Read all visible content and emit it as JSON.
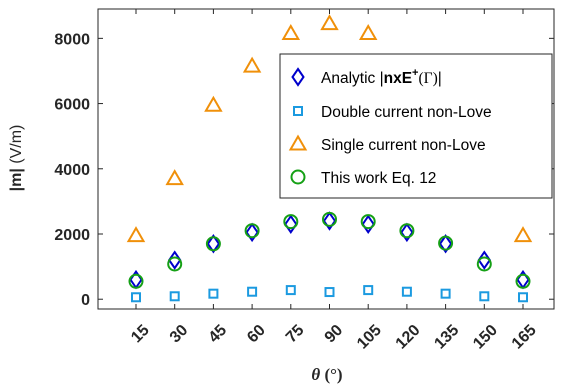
{
  "chart_data": {
    "type": "scatter",
    "xlabel_symbol": "θ",
    "xlabel_unit": " (°)",
    "ylabel_bold": "|m|",
    "ylabel_unit": " (V/m)",
    "x": [
      15,
      30,
      45,
      60,
      75,
      90,
      105,
      120,
      135,
      150,
      165
    ],
    "x_tick_labels": [
      "15",
      "30",
      "45",
      "60",
      "75",
      "90",
      "105",
      "120",
      "135",
      "150",
      "165"
    ],
    "y_ticks": [
      0,
      2000,
      4000,
      6000,
      8000
    ],
    "y_tick_labels": [
      "0",
      "2000",
      "4000",
      "6000",
      "8000"
    ],
    "ylim": [
      -300,
      8900
    ],
    "grid": false,
    "legend_position": "top-right",
    "series": [
      {
        "name": "Analytic |nxE+(Γ)|",
        "name_prefix": "Analytic |",
        "name_bold": "nxE",
        "name_sup": "+",
        "name_gamma": "(Γ)",
        "name_suffix": "|",
        "marker": "diamond",
        "color": "#0000CC",
        "values": [
          600,
          1200,
          1700,
          2050,
          2300,
          2400,
          2300,
          2050,
          1700,
          1200,
          600
        ]
      },
      {
        "name": "Double current non-Love",
        "marker": "square",
        "color": "#1B9AE0",
        "values": [
          60,
          90,
          170,
          230,
          280,
          220,
          280,
          230,
          170,
          90,
          60
        ]
      },
      {
        "name": "Single current non-Love",
        "marker": "triangle",
        "color": "#F0900A",
        "values": [
          1950,
          3700,
          5950,
          7150,
          8150,
          8450,
          8150,
          null,
          null,
          null,
          1950
        ]
      },
      {
        "name": "This work Eq. 12",
        "marker": "circle",
        "color": "#15A015",
        "values": [
          550,
          1080,
          1700,
          2100,
          2380,
          2450,
          2380,
          2100,
          1720,
          1080,
          550
        ]
      }
    ]
  }
}
